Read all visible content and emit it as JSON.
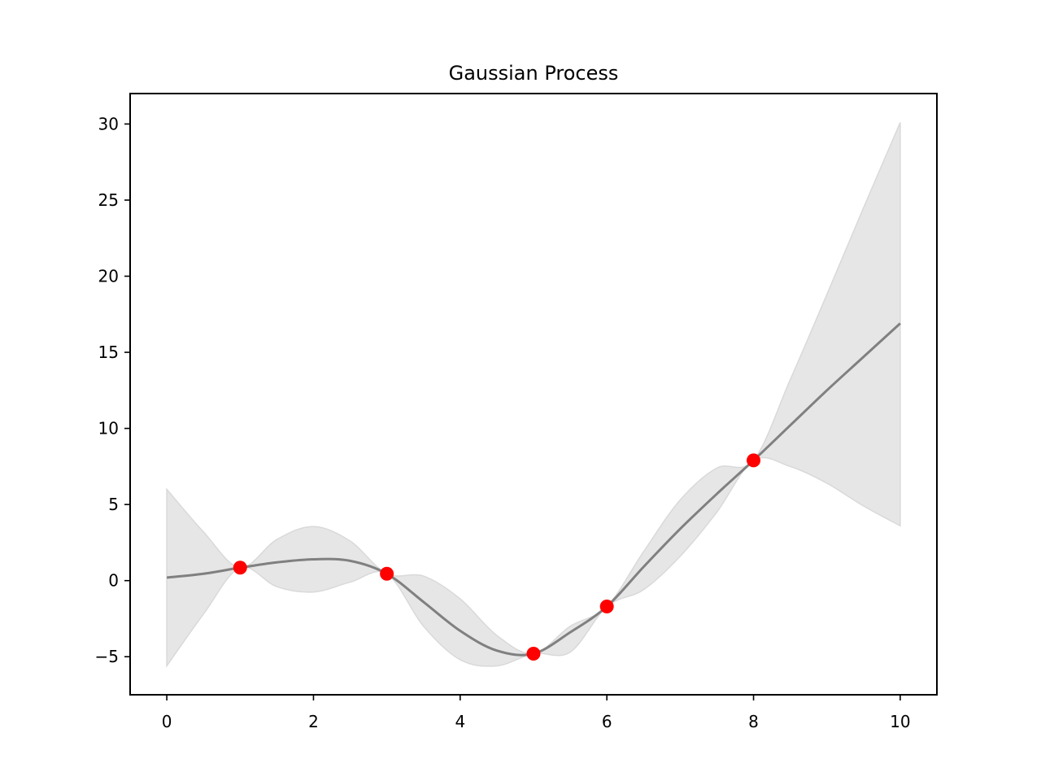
{
  "chart_data": {
    "type": "line",
    "title": "Gaussian Process",
    "xlabel": "",
    "ylabel": "",
    "xlim": [
      -0.5,
      10.5
    ],
    "ylim": [
      -7.5,
      32
    ],
    "xticks": [
      0,
      2,
      4,
      6,
      8,
      10
    ],
    "yticks": [
      -5,
      0,
      5,
      10,
      15,
      20,
      25,
      30
    ],
    "xtick_labels": [
      "0",
      "2",
      "4",
      "6",
      "8",
      "10"
    ],
    "ytick_labels": [
      "−5",
      "0",
      "5",
      "10",
      "15",
      "20",
      "25",
      "30"
    ],
    "grid": false,
    "legend": "none",
    "colors": {
      "mean": "#808080",
      "band": "#e6e6e6",
      "band_edge": "#d9d9d9",
      "points": "#ff0000"
    },
    "mean": {
      "x": [
        0,
        0.5,
        1,
        1.5,
        2,
        2.5,
        3,
        3.5,
        4,
        4.5,
        5,
        5.5,
        6,
        6.5,
        7,
        7.5,
        8,
        8.5,
        9,
        9.5,
        10
      ],
      "y": [
        0.2,
        0.45,
        0.85,
        1.2,
        1.4,
        1.3,
        0.45,
        -1.4,
        -3.3,
        -4.6,
        -4.8,
        -3.4,
        -1.7,
        0.9,
        3.4,
        5.7,
        7.9,
        10.2,
        12.5,
        14.7,
        16.9
      ]
    },
    "band": {
      "x": [
        0,
        0.5,
        1,
        1.5,
        2,
        2.5,
        3,
        3.5,
        4,
        4.5,
        5,
        5.5,
        6,
        6.5,
        7,
        7.5,
        8,
        8.5,
        9,
        9.5,
        10
      ],
      "upper": [
        6.0,
        3.2,
        0.85,
        2.7,
        3.55,
        2.6,
        0.45,
        0.3,
        -1.2,
        -3.6,
        -4.8,
        -3.0,
        -1.7,
        1.9,
        5.3,
        7.4,
        7.9,
        13.2,
        18.8,
        24.5,
        30.1
      ],
      "lower": [
        -5.6,
        -2.2,
        0.85,
        -0.4,
        -0.75,
        -0.1,
        0.45,
        -3.0,
        -5.2,
        -5.6,
        -4.8,
        -4.7,
        -1.7,
        -0.6,
        1.6,
        4.5,
        7.9,
        7.5,
        6.4,
        4.9,
        3.6
      ]
    },
    "points": {
      "x": [
        1,
        3,
        5,
        6,
        8
      ],
      "y": [
        0.85,
        0.45,
        -4.8,
        -1.7,
        7.9
      ]
    }
  }
}
